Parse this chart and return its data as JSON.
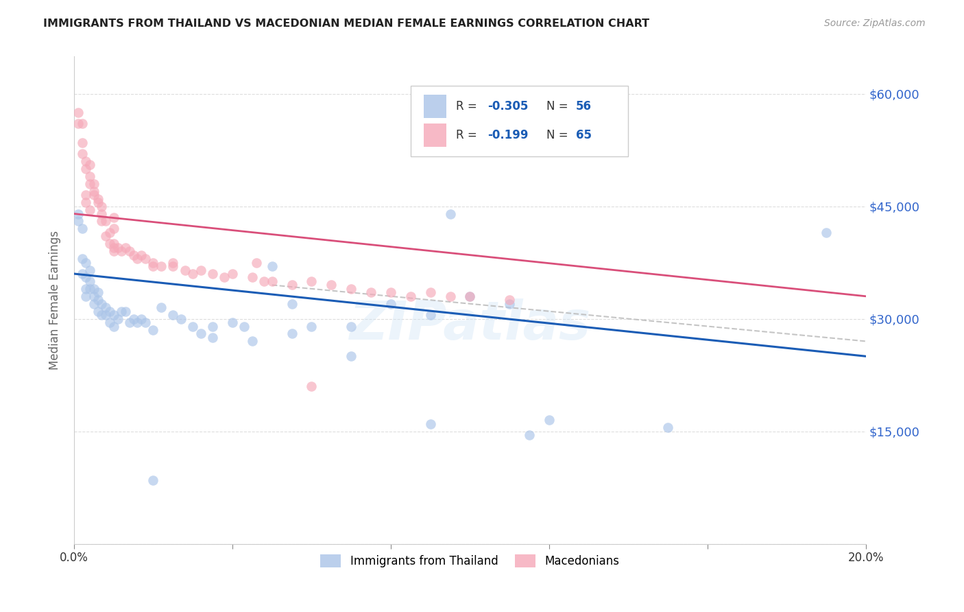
{
  "title": "IMMIGRANTS FROM THAILAND VS MACEDONIAN MEDIAN FEMALE EARNINGS CORRELATION CHART",
  "source": "Source: ZipAtlas.com",
  "ylabel": "Median Female Earnings",
  "xlim": [
    0.0,
    0.2
  ],
  "ylim": [
    0,
    65000
  ],
  "yticks": [
    0,
    15000,
    30000,
    45000,
    60000
  ],
  "ytick_labels": [
    "",
    "$15,000",
    "$30,000",
    "$45,000",
    "$60,000"
  ],
  "xticks": [
    0.0,
    0.04,
    0.08,
    0.12,
    0.16,
    0.2
  ],
  "xtick_labels": [
    "0.0%",
    "",
    "",
    "",
    "",
    "20.0%"
  ],
  "legend_label1": "Immigrants from Thailand",
  "legend_label2": "Macedonians",
  "blue_color": "#aac4e8",
  "pink_color": "#f5a8b8",
  "trend_blue": "#1a5cb5",
  "trend_pink": "#d94f7a",
  "trend_gray_color": "#bbbbbb",
  "title_color": "#222222",
  "axis_label_color": "#666666",
  "tick_color_right": "#3366cc",
  "background_color": "#ffffff",
  "grid_color": "#dddddd",
  "watermark": "ZIPatlas",
  "blue_trend_x0": 0.0,
  "blue_trend_y0": 36000,
  "blue_trend_x1": 0.2,
  "blue_trend_y1": 25000,
  "pink_trend_x0": 0.0,
  "pink_trend_y0": 44000,
  "pink_trend_x1": 0.2,
  "pink_trend_y1": 33000,
  "gray_trend_x0": 0.06,
  "gray_trend_y0": 34000,
  "gray_trend_x1": 0.2,
  "gray_trend_y1": 27000,
  "blue_scatter_x": [
    0.001,
    0.001,
    0.002,
    0.002,
    0.002,
    0.003,
    0.003,
    0.003,
    0.003,
    0.004,
    0.004,
    0.004,
    0.005,
    0.005,
    0.005,
    0.006,
    0.006,
    0.006,
    0.007,
    0.007,
    0.008,
    0.008,
    0.009,
    0.009,
    0.01,
    0.01,
    0.011,
    0.012,
    0.013,
    0.014,
    0.015,
    0.016,
    0.017,
    0.018,
    0.02,
    0.022,
    0.025,
    0.027,
    0.03,
    0.032,
    0.035,
    0.04,
    0.043,
    0.05,
    0.055,
    0.06,
    0.07,
    0.08,
    0.09,
    0.095,
    0.1,
    0.11,
    0.055,
    0.12,
    0.15,
    0.19
  ],
  "blue_scatter_y": [
    44000,
    43000,
    42000,
    38000,
    36000,
    37500,
    35500,
    34000,
    33000,
    36500,
    35000,
    34000,
    34000,
    33000,
    32000,
    33500,
    32500,
    31000,
    32000,
    30500,
    31500,
    30500,
    31000,
    29500,
    30500,
    29000,
    30000,
    31000,
    31000,
    29500,
    30000,
    29500,
    30000,
    29500,
    28500,
    31500,
    30500,
    30000,
    29000,
    28000,
    29000,
    29500,
    29000,
    37000,
    32000,
    29000,
    29000,
    32000,
    30500,
    44000,
    33000,
    32000,
    28000,
    16500,
    15500,
    41500
  ],
  "blue_scatter_y_outliers": [
    27500,
    27000,
    25000,
    16000,
    14500,
    8500
  ],
  "blue_scatter_x_outliers": [
    0.035,
    0.045,
    0.07,
    0.09,
    0.115,
    0.02
  ],
  "pink_scatter_x": [
    0.001,
    0.001,
    0.002,
    0.002,
    0.002,
    0.003,
    0.003,
    0.004,
    0.004,
    0.004,
    0.005,
    0.005,
    0.005,
    0.006,
    0.006,
    0.007,
    0.007,
    0.007,
    0.008,
    0.008,
    0.009,
    0.009,
    0.01,
    0.01,
    0.01,
    0.011,
    0.012,
    0.013,
    0.014,
    0.015,
    0.016,
    0.017,
    0.018,
    0.02,
    0.02,
    0.022,
    0.025,
    0.025,
    0.028,
    0.03,
    0.032,
    0.035,
    0.038,
    0.04,
    0.045,
    0.048,
    0.05,
    0.055,
    0.06,
    0.065,
    0.07,
    0.075,
    0.08,
    0.085,
    0.09,
    0.095,
    0.1,
    0.11,
    0.01,
    0.01,
    0.004,
    0.003,
    0.003,
    0.046,
    0.06
  ],
  "pink_scatter_y": [
    57500,
    56000,
    56000,
    53500,
    52000,
    51000,
    50000,
    50500,
    49000,
    48000,
    48000,
    47000,
    46500,
    46000,
    45500,
    45000,
    44000,
    43000,
    43000,
    41000,
    41500,
    40000,
    40000,
    39500,
    39000,
    39500,
    39000,
    39500,
    39000,
    38500,
    38000,
    38500,
    38000,
    37500,
    37000,
    37000,
    37500,
    37000,
    36500,
    36000,
    36500,
    36000,
    35500,
    36000,
    35500,
    35000,
    35000,
    34500,
    35000,
    34500,
    34000,
    33500,
    33500,
    33000,
    33500,
    33000,
    33000,
    32500,
    43500,
    42000,
    44500,
    45500,
    46500,
    37500,
    21000
  ]
}
